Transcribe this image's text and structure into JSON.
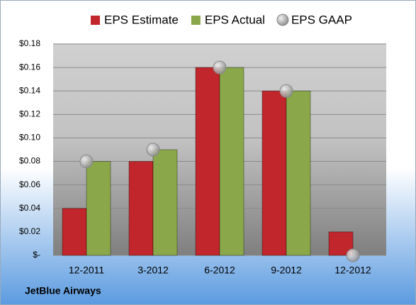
{
  "chart_data": {
    "type": "bar",
    "categories": [
      "12-2011",
      "3-2012",
      "6-2012",
      "9-2012",
      "12-2012"
    ],
    "series": [
      {
        "name": "EPS Estimate",
        "type": "bar",
        "color": "#c0262b",
        "values": [
          0.04,
          0.08,
          0.16,
          0.14,
          0.02
        ]
      },
      {
        "name": "EPS Actual",
        "type": "bar",
        "color": "#8aa84a",
        "values": [
          0.08,
          0.09,
          0.16,
          0.14,
          null
        ]
      },
      {
        "name": "EPS GAAP",
        "type": "scatter",
        "color": "#b4b4b4",
        "values": [
          0.08,
          0.09,
          0.16,
          0.14,
          0
        ]
      }
    ],
    "ylim": [
      0,
      0.18
    ],
    "yticks": [
      {
        "value": 0,
        "label": "$-"
      },
      {
        "value": 0.02,
        "label": "$0.02"
      },
      {
        "value": 0.04,
        "label": "$0.04"
      },
      {
        "value": 0.06,
        "label": "$0.06"
      },
      {
        "value": 0.08,
        "label": "$0.08"
      },
      {
        "value": 0.1,
        "label": "$0.10"
      },
      {
        "value": 0.12,
        "label": "$0.12"
      },
      {
        "value": 0.14,
        "label": "$0.14"
      },
      {
        "value": 0.16,
        "label": "$0.16"
      },
      {
        "value": 0.18,
        "label": "$0.18"
      }
    ],
    "grid": true,
    "annotation": "JetBlue Airways"
  }
}
